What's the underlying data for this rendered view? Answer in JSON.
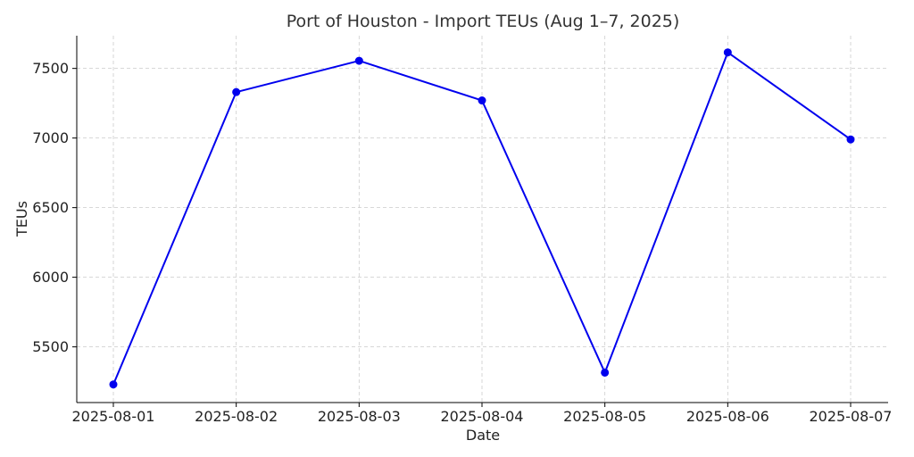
{
  "chart_data": {
    "type": "line",
    "title": "Port of Houston - Import TEUs (Aug 1–7, 2025)",
    "xlabel": "Date",
    "ylabel": "TEUs",
    "categories": [
      "2025-08-01",
      "2025-08-02",
      "2025-08-03",
      "2025-08-04",
      "2025-08-05",
      "2025-08-06",
      "2025-08-07"
    ],
    "series": [
      {
        "values": [
          5230,
          7330,
          7555,
          7270,
          5315,
          7615,
          6990
        ]
      }
    ],
    "yticks": [
      5500,
      6000,
      6500,
      7000,
      7500
    ],
    "ylim": [
      5100,
      7735
    ],
    "grid": true,
    "marker": "circle",
    "line_color": "#0000ee"
  }
}
